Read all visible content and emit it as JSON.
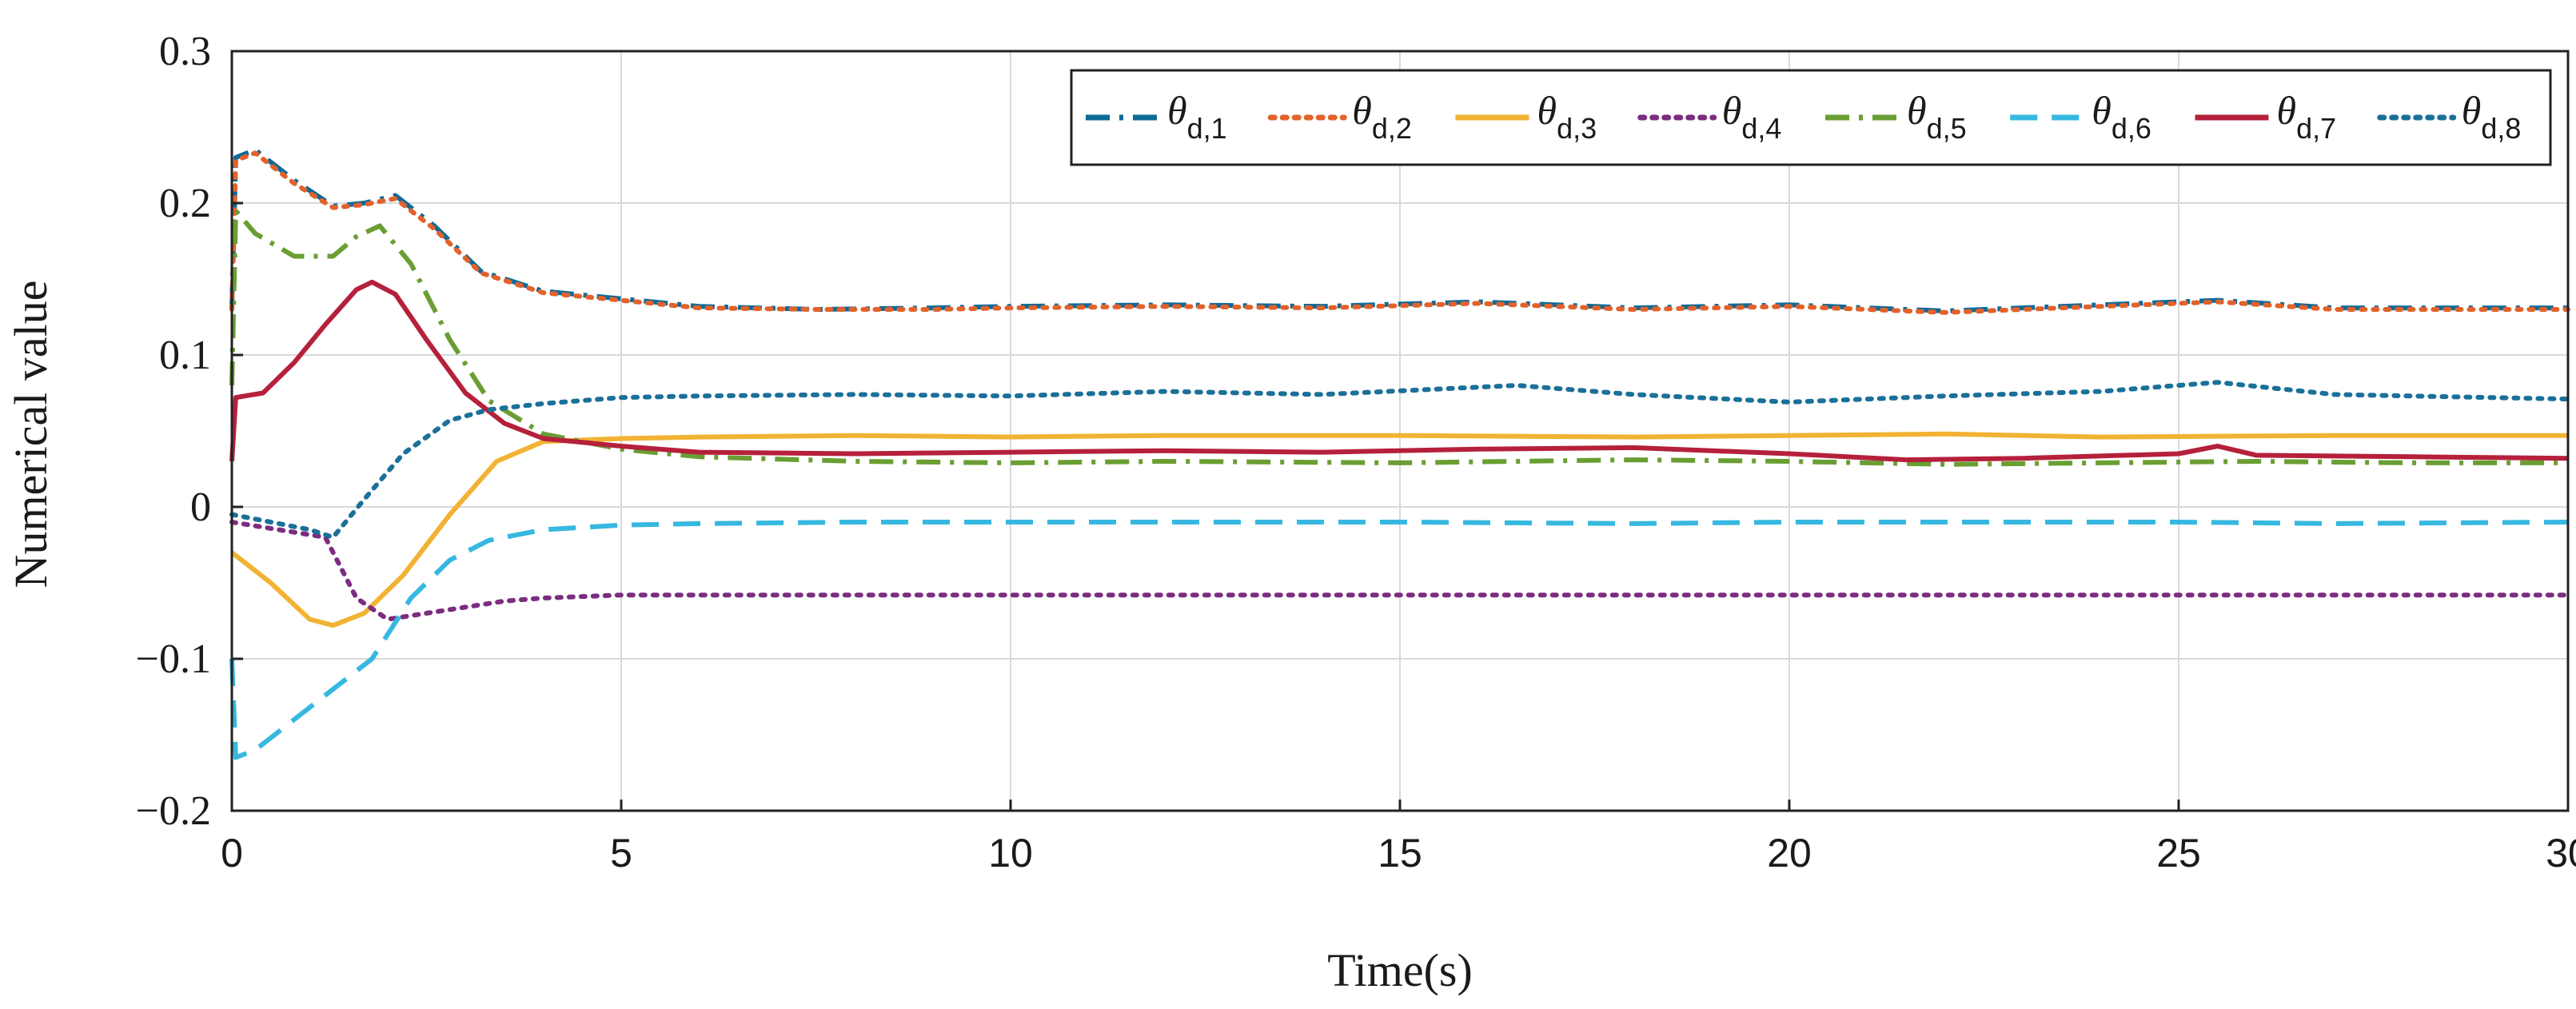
{
  "chart_data": {
    "type": "line",
    "title": "",
    "xlabel": "Time(s)",
    "ylabel": "Numerical value",
    "xlim": [
      0,
      30
    ],
    "ylim": [
      -0.2,
      0.3
    ],
    "xticks": [
      0,
      5,
      10,
      15,
      20,
      25,
      30
    ],
    "xtick_labels": [
      "0",
      "5",
      "10",
      "15",
      "20",
      "25",
      "30"
    ],
    "yticks": [
      -0.2,
      -0.1,
      0,
      0.1,
      0.2,
      0.3
    ],
    "ytick_labels": [
      "−0.2",
      "−0.1",
      "0",
      "0.1",
      "0.2",
      "0.3"
    ],
    "grid": true,
    "legend_position": "top-right",
    "series": [
      {
        "name": "d,1",
        "color": "#0e6a99",
        "dash": "dashdot",
        "x": [
          0,
          0.05,
          0.3,
          0.8,
          1.3,
          1.7,
          2.1,
          2.6,
          3.2,
          4.0,
          5.0,
          6.0,
          7.5,
          9.0,
          10.0,
          12.0,
          14.0,
          16.0,
          18.0,
          20.0,
          22.0,
          24.0,
          25.5,
          27.0,
          30.0
        ],
        "y": [
          0.13,
          0.23,
          0.235,
          0.215,
          0.198,
          0.2,
          0.205,
          0.185,
          0.155,
          0.142,
          0.137,
          0.132,
          0.13,
          0.131,
          0.132,
          0.133,
          0.132,
          0.135,
          0.131,
          0.133,
          0.129,
          0.133,
          0.136,
          0.131,
          0.131
        ]
      },
      {
        "name": "d,2",
        "color": "#e2622b",
        "dash": "dotted",
        "x": [
          0,
          0.05,
          0.3,
          0.8,
          1.3,
          1.7,
          2.1,
          2.6,
          3.2,
          4.0,
          5.0,
          6.0,
          7.5,
          9.0,
          10.0,
          12.0,
          14.0,
          16.0,
          18.0,
          20.0,
          22.0,
          24.0,
          25.5,
          27.0,
          30.0
        ],
        "y": [
          0.13,
          0.228,
          0.233,
          0.213,
          0.197,
          0.199,
          0.203,
          0.183,
          0.154,
          0.141,
          0.136,
          0.131,
          0.13,
          0.13,
          0.131,
          0.132,
          0.131,
          0.134,
          0.13,
          0.132,
          0.128,
          0.132,
          0.135,
          0.13,
          0.13
        ]
      },
      {
        "name": "d,3",
        "color": "#f2b233",
        "dash": "solid",
        "x": [
          0,
          0.5,
          1.0,
          1.3,
          1.7,
          2.2,
          2.8,
          3.4,
          4.0,
          5.0,
          6.0,
          8.0,
          10.0,
          12.0,
          15.0,
          18.0,
          20.0,
          22.0,
          24.0,
          27.0,
          30.0
        ],
        "y": [
          -0.03,
          -0.05,
          -0.074,
          -0.078,
          -0.07,
          -0.045,
          -0.005,
          0.03,
          0.043,
          0.045,
          0.046,
          0.047,
          0.046,
          0.047,
          0.047,
          0.046,
          0.047,
          0.048,
          0.046,
          0.047,
          0.047
        ]
      },
      {
        "name": "d,4",
        "color": "#7c2d80",
        "dash": "dotted",
        "x": [
          0,
          0.6,
          1.2,
          1.6,
          2.0,
          2.5,
          3.0,
          3.5,
          4.0,
          5.0,
          6.0,
          8.0,
          10.0,
          15.0,
          20.0,
          25.0,
          30.0
        ],
        "y": [
          -0.01,
          -0.015,
          -0.02,
          -0.06,
          -0.074,
          -0.07,
          -0.066,
          -0.062,
          -0.06,
          -0.058,
          -0.058,
          -0.058,
          -0.058,
          -0.058,
          -0.058,
          -0.058,
          -0.058
        ]
      },
      {
        "name": "d,5",
        "color": "#6a9e33",
        "dash": "dashdot",
        "x": [
          0,
          0.05,
          0.3,
          0.8,
          1.3,
          1.6,
          1.9,
          2.3,
          2.8,
          3.3,
          4.0,
          5.0,
          6.0,
          8.0,
          10.0,
          12.0,
          15.0,
          18.0,
          20.0,
          22.0,
          24.0,
          26.0,
          28.0,
          30.0
        ],
        "y": [
          0.08,
          0.195,
          0.18,
          0.165,
          0.165,
          0.178,
          0.185,
          0.16,
          0.11,
          0.07,
          0.048,
          0.038,
          0.033,
          0.03,
          0.029,
          0.03,
          0.029,
          0.031,
          0.03,
          0.028,
          0.029,
          0.03,
          0.029,
          0.029
        ]
      },
      {
        "name": "d,6",
        "color": "#36b8e0",
        "dash": "dashed",
        "x": [
          0,
          0.05,
          0.3,
          0.8,
          1.3,
          1.8,
          2.3,
          2.8,
          3.3,
          4.0,
          5.0,
          6.0,
          8.0,
          10.0,
          12.0,
          15.0,
          18.0,
          20.0,
          22.0,
          25.0,
          27.0,
          30.0
        ],
        "y": [
          -0.1,
          -0.165,
          -0.16,
          -0.14,
          -0.12,
          -0.1,
          -0.06,
          -0.035,
          -0.022,
          -0.015,
          -0.012,
          -0.011,
          -0.01,
          -0.01,
          -0.01,
          -0.01,
          -0.011,
          -0.01,
          -0.01,
          -0.01,
          -0.011,
          -0.01
        ]
      },
      {
        "name": "d,7",
        "color": "#b5203b",
        "dash": "solid",
        "x": [
          0,
          0.05,
          0.4,
          0.8,
          1.2,
          1.6,
          1.8,
          2.1,
          2.5,
          3.0,
          3.5,
          4.0,
          5.0,
          6.0,
          8.0,
          10.0,
          12.0,
          14.0,
          16.0,
          18.0,
          20.0,
          21.5,
          23.0,
          25.0,
          25.5,
          26.0,
          28.0,
          30.0
        ],
        "y": [
          0.03,
          0.072,
          0.075,
          0.095,
          0.12,
          0.143,
          0.148,
          0.14,
          0.11,
          0.075,
          0.055,
          0.045,
          0.04,
          0.036,
          0.035,
          0.036,
          0.037,
          0.036,
          0.038,
          0.039,
          0.035,
          0.031,
          0.032,
          0.035,
          0.04,
          0.034,
          0.033,
          0.032
        ]
      },
      {
        "name": "d,8",
        "color": "#1a7099",
        "dash": "dotted",
        "x": [
          0,
          0.5,
          1.0,
          1.3,
          1.7,
          2.2,
          2.8,
          3.3,
          4.0,
          5.0,
          6.0,
          8.0,
          10.0,
          12.0,
          14.0,
          16.5,
          18.0,
          20.0,
          22.0,
          24.0,
          25.5,
          27.0,
          30.0
        ],
        "y": [
          -0.005,
          -0.01,
          -0.015,
          -0.02,
          0.005,
          0.035,
          0.057,
          0.064,
          0.068,
          0.072,
          0.073,
          0.074,
          0.073,
          0.076,
          0.074,
          0.08,
          0.074,
          0.069,
          0.073,
          0.076,
          0.082,
          0.074,
          0.071
        ]
      }
    ]
  }
}
